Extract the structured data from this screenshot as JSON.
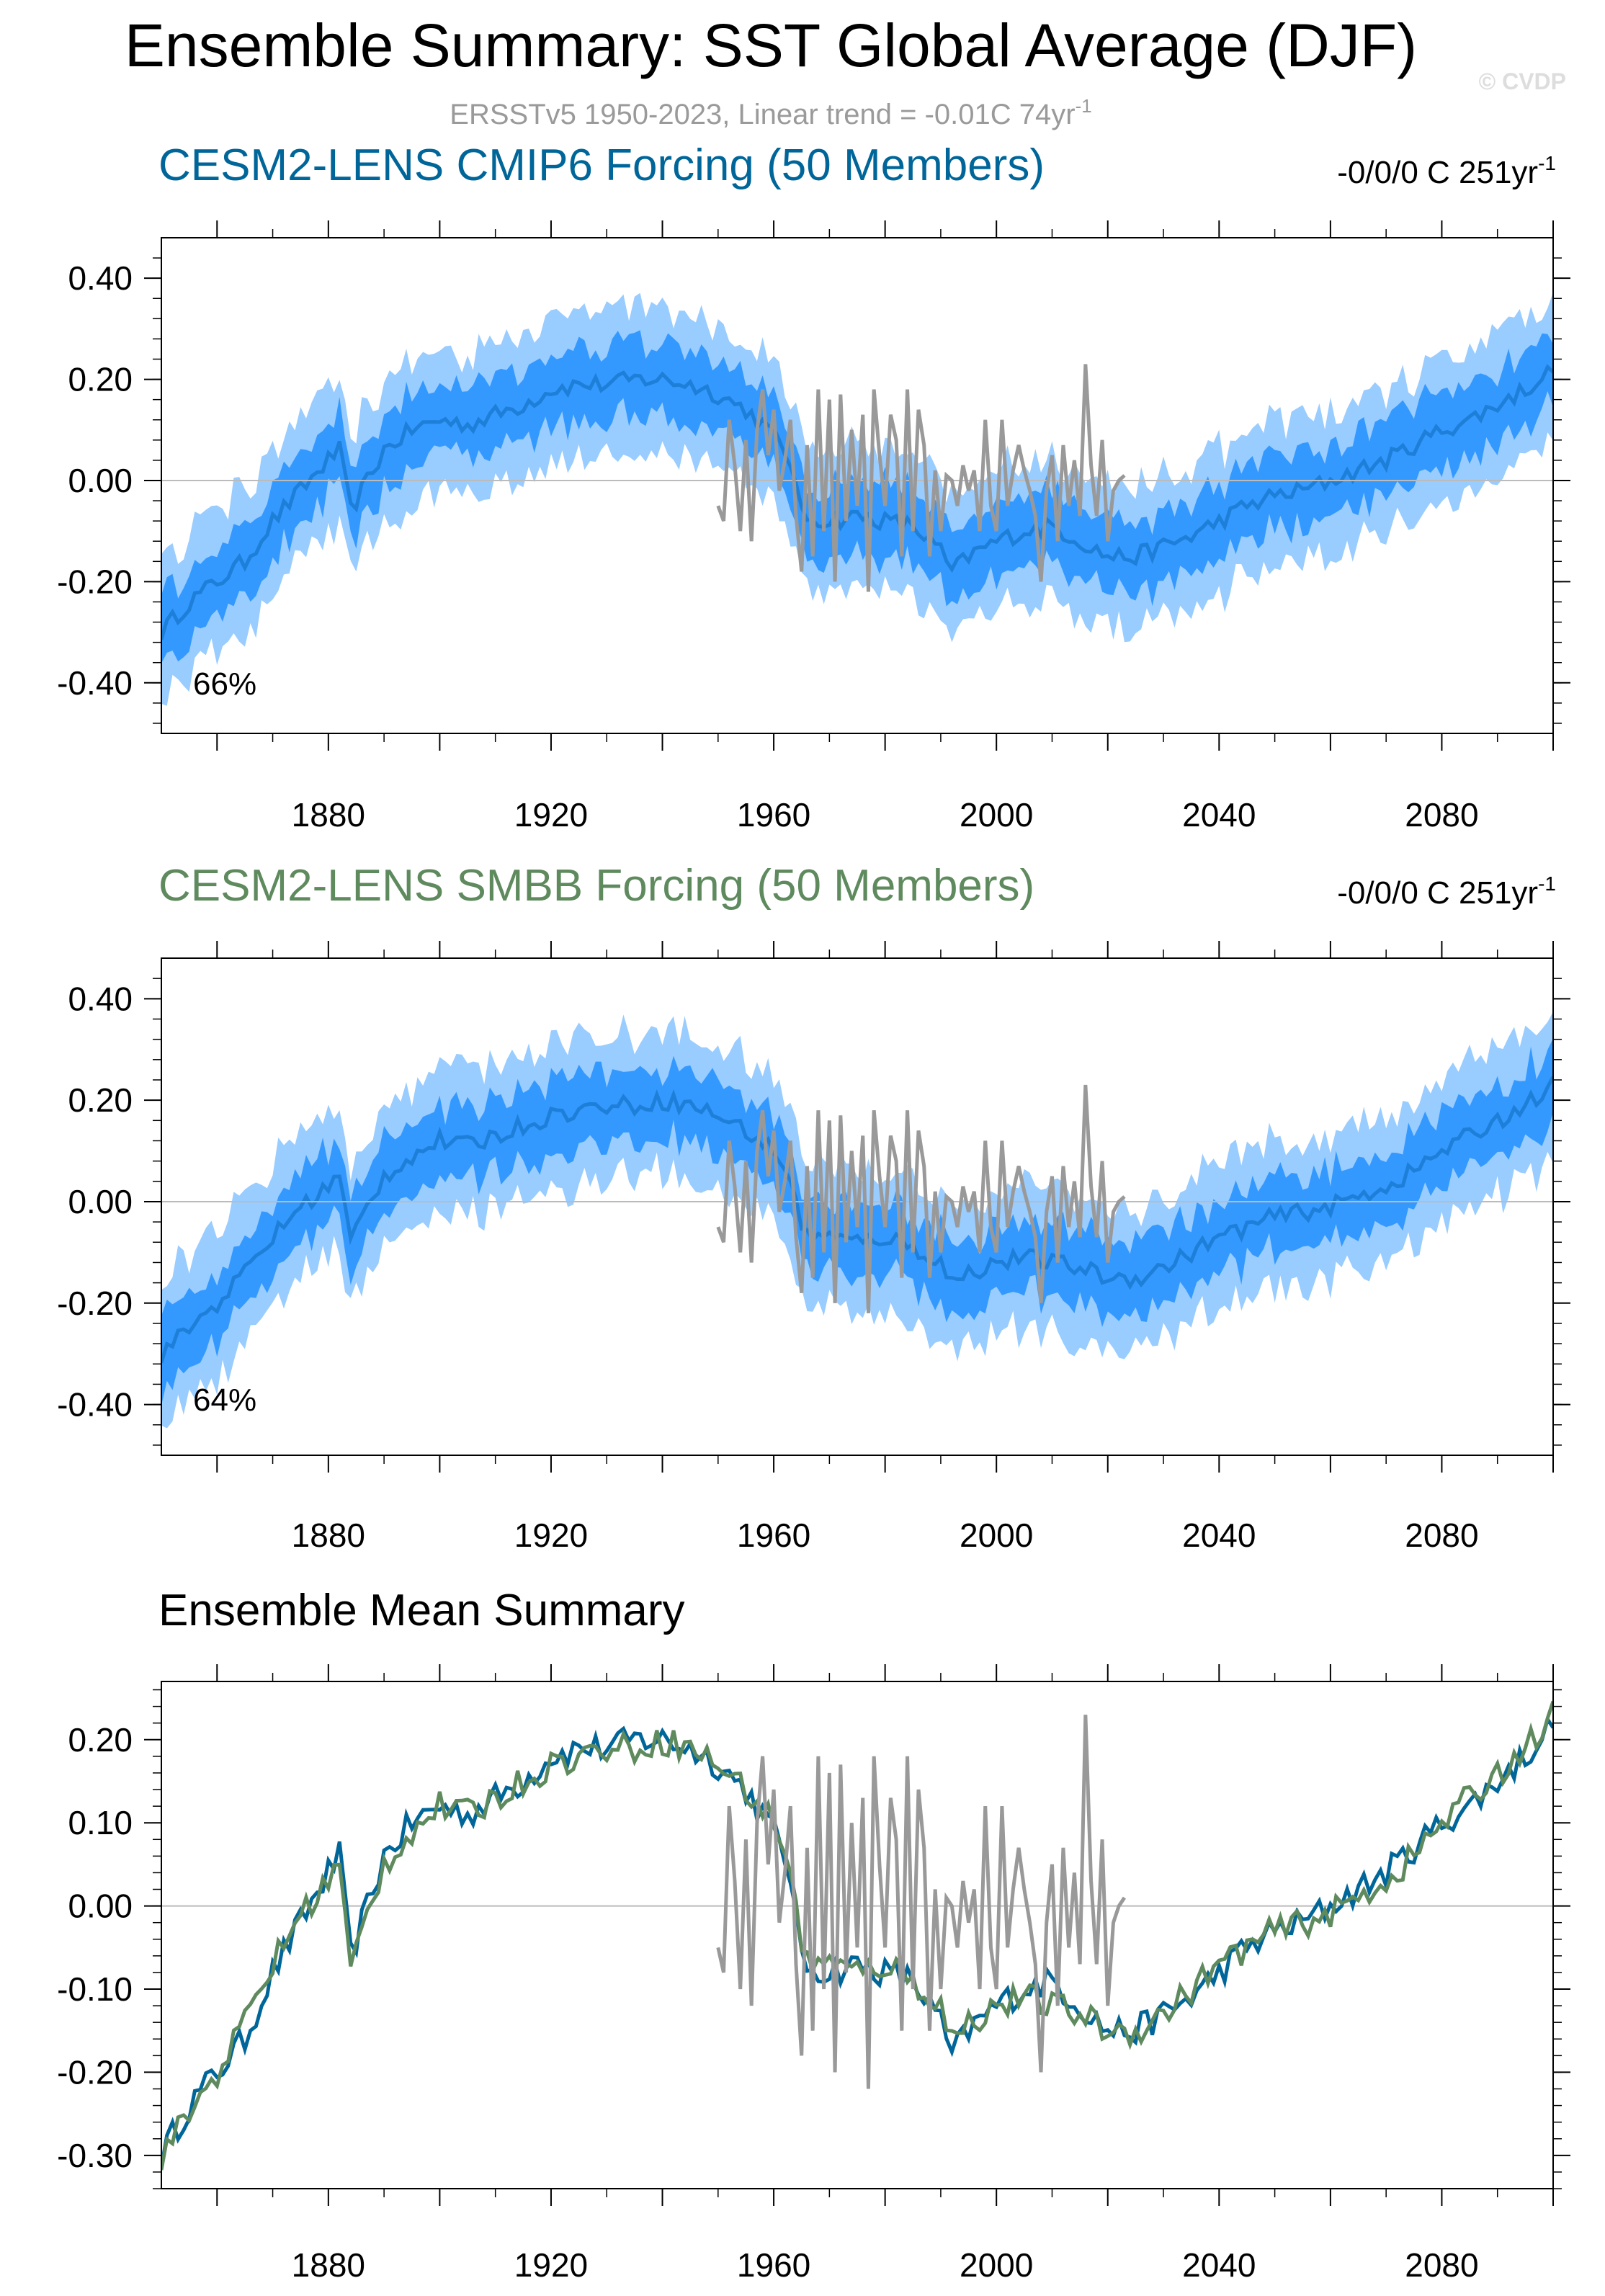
{
  "figure": {
    "title": "Ensemble Summary: SST Global Average (DJF)",
    "subtitle": "ERSSTv5 1950-2023, Linear trend = -0.01C 74yr",
    "subtitle_sup": "-1",
    "watermark": "© CVDP"
  },
  "colors": {
    "title": "#000000",
    "subtitle": "#9a9a9a",
    "cmip6": "#006699",
    "smbb": "#5e8a5e",
    "obs": "#999999",
    "band_outer": "#99ccff",
    "band_inner": "#3399ff",
    "mean_line": "#1e7fd8",
    "zero_line": "#bbbbbb"
  },
  "chart_data": [
    {
      "type": "area",
      "panel": "cmip6",
      "title": "CESM2-LENS CMIP6 Forcing (50 Members)",
      "title_color": "#006699",
      "trend_text": "-0/0/0 C 251yr",
      "trend_sup": "-1",
      "percent_label": "66%",
      "xlim": [
        1850,
        2100
      ],
      "ylim": [
        -0.5,
        0.48
      ],
      "yticks": [
        -0.4,
        -0.2,
        0.0,
        0.2,
        0.4
      ],
      "ytick_labels": [
        "-0.40",
        "-0.20",
        "0.00",
        "0.20",
        "0.40"
      ],
      "xticks": [
        1880,
        1920,
        1960,
        2000,
        2040,
        2080
      ],
      "xtick_labels": [
        "1880",
        "1920",
        "1960",
        "2000",
        "2040",
        "2080"
      ],
      "mean_keypoints": [
        [
          1850,
          -0.3
        ],
        [
          1855,
          -0.24
        ],
        [
          1860,
          -0.2
        ],
        [
          1865,
          -0.16
        ],
        [
          1870,
          -0.08
        ],
        [
          1875,
          -0.02
        ],
        [
          1880,
          0.04
        ],
        [
          1882,
          0.06
        ],
        [
          1884,
          -0.06
        ],
        [
          1886,
          -0.02
        ],
        [
          1890,
          0.06
        ],
        [
          1895,
          0.1
        ],
        [
          1900,
          0.12
        ],
        [
          1905,
          0.11
        ],
        [
          1910,
          0.13
        ],
        [
          1915,
          0.15
        ],
        [
          1920,
          0.18
        ],
        [
          1925,
          0.19
        ],
        [
          1930,
          0.19
        ],
        [
          1935,
          0.2
        ],
        [
          1940,
          0.2
        ],
        [
          1945,
          0.19
        ],
        [
          1950,
          0.17
        ],
        [
          1955,
          0.14
        ],
        [
          1960,
          0.09
        ],
        [
          1963,
          0.04
        ],
        [
          1965,
          -0.07
        ],
        [
          1970,
          -0.08
        ],
        [
          1975,
          -0.07
        ],
        [
          1980,
          -0.08
        ],
        [
          1985,
          -0.09
        ],
        [
          1990,
          -0.14
        ],
        [
          1992,
          -0.18
        ],
        [
          1995,
          -0.15
        ],
        [
          2000,
          -0.12
        ],
        [
          2005,
          -0.1
        ],
        [
          2010,
          -0.09
        ],
        [
          2015,
          -0.12
        ],
        [
          2020,
          -0.15
        ],
        [
          2025,
          -0.15
        ],
        [
          2030,
          -0.13
        ],
        [
          2035,
          -0.11
        ],
        [
          2040,
          -0.08
        ],
        [
          2045,
          -0.05
        ],
        [
          2050,
          -0.03
        ],
        [
          2055,
          -0.02
        ],
        [
          2060,
          0.0
        ],
        [
          2065,
          0.02
        ],
        [
          2070,
          0.04
        ],
        [
          2075,
          0.07
        ],
        [
          2080,
          0.1
        ],
        [
          2085,
          0.12
        ],
        [
          2090,
          0.15
        ],
        [
          2095,
          0.18
        ],
        [
          2100,
          0.22
        ]
      ],
      "inner_halfwidth": 0.07,
      "outer_halfwidth": 0.13
    },
    {
      "type": "area",
      "panel": "smbb",
      "title": "CESM2-LENS SMBB Forcing (50 Members)",
      "title_color": "#5e8a5e",
      "trend_text": "-0/0/0 C 251yr",
      "trend_sup": "-1",
      "percent_label": "64%",
      "xlim": [
        1850,
        2100
      ],
      "ylim": [
        -0.5,
        0.48
      ],
      "yticks": [
        -0.4,
        -0.2,
        0.0,
        0.2,
        0.4
      ],
      "ytick_labels": [
        "-0.40",
        "-0.20",
        "0.00",
        "0.20",
        "0.40"
      ],
      "xticks": [
        1880,
        1920,
        1960,
        2000,
        2040,
        2080
      ],
      "xtick_labels": [
        "1880",
        "1920",
        "1960",
        "2000",
        "2040",
        "2080"
      ],
      "mean_keypoints": [
        [
          1850,
          -0.3
        ],
        [
          1855,
          -0.25
        ],
        [
          1860,
          -0.2
        ],
        [
          1865,
          -0.14
        ],
        [
          1870,
          -0.07
        ],
        [
          1875,
          -0.01
        ],
        [
          1880,
          0.03
        ],
        [
          1882,
          0.05
        ],
        [
          1884,
          -0.08
        ],
        [
          1886,
          -0.03
        ],
        [
          1890,
          0.05
        ],
        [
          1895,
          0.09
        ],
        [
          1900,
          0.12
        ],
        [
          1905,
          0.11
        ],
        [
          1910,
          0.13
        ],
        [
          1915,
          0.15
        ],
        [
          1920,
          0.17
        ],
        [
          1925,
          0.18
        ],
        [
          1930,
          0.19
        ],
        [
          1935,
          0.19
        ],
        [
          1940,
          0.2
        ],
        [
          1945,
          0.19
        ],
        [
          1950,
          0.17
        ],
        [
          1955,
          0.14
        ],
        [
          1960,
          0.1
        ],
        [
          1963,
          0.05
        ],
        [
          1965,
          -0.06
        ],
        [
          1970,
          -0.07
        ],
        [
          1975,
          -0.08
        ],
        [
          1980,
          -0.07
        ],
        [
          1985,
          -0.09
        ],
        [
          1990,
          -0.12
        ],
        [
          1992,
          -0.16
        ],
        [
          1995,
          -0.14
        ],
        [
          2000,
          -0.12
        ],
        [
          2005,
          -0.11
        ],
        [
          2010,
          -0.12
        ],
        [
          2015,
          -0.13
        ],
        [
          2020,
          -0.15
        ],
        [
          2025,
          -0.15
        ],
        [
          2030,
          -0.13
        ],
        [
          2035,
          -0.1
        ],
        [
          2040,
          -0.07
        ],
        [
          2045,
          -0.05
        ],
        [
          2050,
          -0.03
        ],
        [
          2055,
          -0.02
        ],
        [
          2060,
          -0.01
        ],
        [
          2065,
          0.01
        ],
        [
          2070,
          0.03
        ],
        [
          2075,
          0.06
        ],
        [
          2080,
          0.1
        ],
        [
          2085,
          0.13
        ],
        [
          2090,
          0.16
        ],
        [
          2095,
          0.19
        ],
        [
          2100,
          0.23
        ]
      ],
      "inner_halfwidth": 0.07,
      "outer_halfwidth": 0.13
    },
    {
      "type": "line",
      "panel": "mean",
      "title": "Ensemble Mean Summary",
      "title_color": "#000000",
      "xlim": [
        1850,
        2100
      ],
      "ylim": [
        -0.34,
        0.27
      ],
      "yticks": [
        -0.3,
        -0.2,
        -0.1,
        0.0,
        0.1,
        0.2
      ],
      "ytick_labels": [
        "-0.30",
        "-0.20",
        "-0.10",
        "0.00",
        "0.10",
        "0.20"
      ],
      "xticks": [
        1880,
        1920,
        1960,
        2000,
        2040,
        2080
      ],
      "xtick_labels": [
        "1880",
        "1920",
        "1960",
        "2000",
        "2040",
        "2080"
      ]
    }
  ],
  "observations": {
    "name": "ERSSTv5",
    "years": [
      1950,
      1951,
      1952,
      1953,
      1954,
      1955,
      1956,
      1957,
      1958,
      1959,
      1960,
      1961,
      1962,
      1963,
      1964,
      1965,
      1966,
      1967,
      1968,
      1969,
      1970,
      1971,
      1972,
      1973,
      1974,
      1975,
      1976,
      1977,
      1978,
      1979,
      1980,
      1981,
      1982,
      1983,
      1984,
      1985,
      1986,
      1987,
      1988,
      1989,
      1990,
      1991,
      1992,
      1993,
      1994,
      1995,
      1996,
      1997,
      1998,
      1999,
      2000,
      2001,
      2002,
      2003,
      2004,
      2005,
      2006,
      2007,
      2008,
      2009,
      2010,
      2011,
      2012,
      2013,
      2014,
      2015,
      2016,
      2017,
      2018,
      2019,
      2020,
      2021,
      2022,
      2023
    ],
    "values": [
      -0.05,
      -0.08,
      0.12,
      0.03,
      -0.1,
      0.08,
      -0.12,
      0.1,
      0.18,
      0.05,
      0.14,
      -0.02,
      0.04,
      0.12,
      -0.07,
      -0.18,
      0.07,
      -0.15,
      0.18,
      -0.1,
      0.16,
      -0.2,
      0.17,
      -0.08,
      0.1,
      -0.05,
      0.13,
      -0.22,
      0.18,
      0.05,
      -0.05,
      0.13,
      0.08,
      -0.15,
      0.18,
      -0.1,
      0.14,
      0.07,
      -0.15,
      0.02,
      -0.1,
      0.01,
      0.0,
      -0.05,
      0.03,
      -0.02,
      0.02,
      -0.1,
      0.12,
      -0.05,
      -0.1,
      0.12,
      -0.05,
      0.02,
      0.07,
      0.02,
      -0.02,
      -0.07,
      -0.2,
      -0.02,
      0.05,
      -0.12,
      0.07,
      -0.05,
      0.04,
      -0.07,
      0.23,
      0.03,
      -0.07,
      0.08,
      -0.12,
      -0.02,
      0.0,
      0.01
    ]
  }
}
